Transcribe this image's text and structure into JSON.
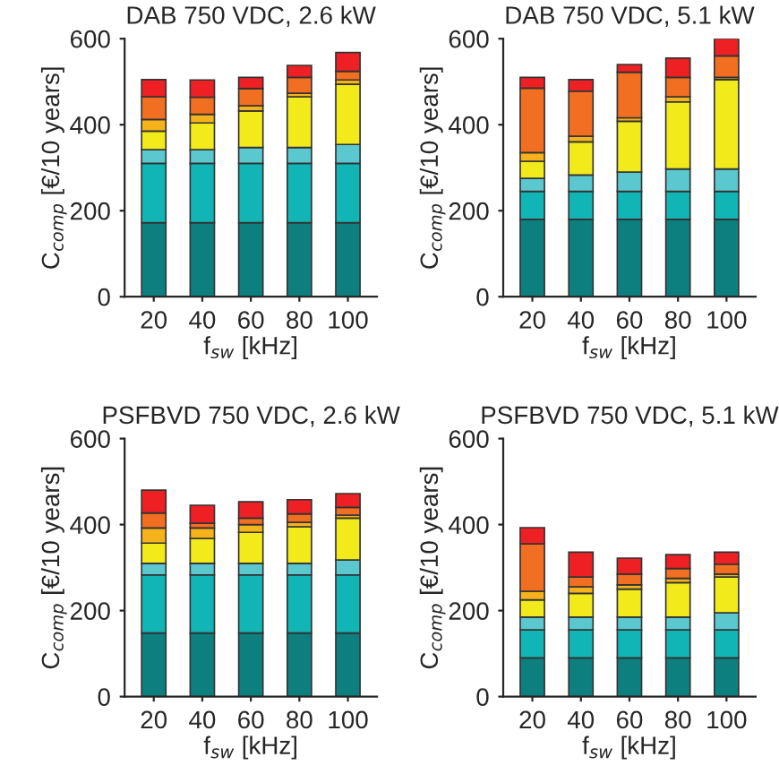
{
  "chart_data": [
    {
      "type": "bar",
      "stacked": true,
      "title": "DAB 750 VDC, 2.6 kW",
      "xlabel": "f$_{sw}$ [kHz]",
      "ylabel": "C$_{comp}$ [€/10 years]",
      "categories": [
        "20",
        "40",
        "60",
        "80",
        "100"
      ],
      "ylim": [
        0,
        600
      ],
      "yticks": [
        0,
        200,
        400,
        600
      ],
      "series": [
        {
          "color": "#0e7f7f",
          "values": [
            172,
            172,
            172,
            172,
            172
          ]
        },
        {
          "color": "#12b5b5",
          "values": [
            138,
            138,
            138,
            138,
            138
          ]
        },
        {
          "color": "#5bc8d0",
          "values": [
            32,
            32,
            37,
            37,
            44
          ]
        },
        {
          "color": "#f2ea1a",
          "values": [
            43,
            62,
            85,
            118,
            140
          ]
        },
        {
          "color": "#f5b21a",
          "values": [
            27,
            20,
            12,
            8,
            10
          ]
        },
        {
          "color": "#f26f21",
          "values": [
            53,
            40,
            40,
            37,
            20
          ]
        },
        {
          "color": "#ee2024",
          "values": [
            40,
            40,
            26,
            28,
            44
          ]
        }
      ]
    },
    {
      "type": "bar",
      "stacked": true,
      "title": "DAB 750 VDC, 5.1 kW",
      "xlabel": "f$_{sw}$ [kHz]",
      "ylabel": "C$_{comp}$ [€/10 years]",
      "categories": [
        "20",
        "40",
        "60",
        "80",
        "100"
      ],
      "ylim": [
        0,
        600
      ],
      "yticks": [
        0,
        200,
        400,
        600
      ],
      "series": [
        {
          "color": "#0e7f7f",
          "values": [
            180,
            180,
            180,
            180,
            180
          ]
        },
        {
          "color": "#12b5b5",
          "values": [
            65,
            65,
            65,
            65,
            65
          ]
        },
        {
          "color": "#5bc8d0",
          "values": [
            30,
            38,
            45,
            52,
            52
          ]
        },
        {
          "color": "#f2ea1a",
          "values": [
            40,
            77,
            118,
            156,
            208
          ]
        },
        {
          "color": "#f5b21a",
          "values": [
            20,
            13,
            8,
            12,
            5
          ]
        },
        {
          "color": "#f26f21",
          "values": [
            150,
            105,
            106,
            45,
            50
          ]
        },
        {
          "color": "#ee2024",
          "values": [
            25,
            27,
            18,
            45,
            40
          ]
        }
      ]
    },
    {
      "type": "bar",
      "stacked": true,
      "title": "PSFBVD 750 VDC, 2.6 kW",
      "xlabel": "f$_{sw}$ [kHz]",
      "ylabel": "C$_{comp}$ [€/10 years]",
      "categories": [
        "20",
        "40",
        "60",
        "80",
        "100"
      ],
      "ylim": [
        0,
        600
      ],
      "yticks": [
        0,
        200,
        400,
        600
      ],
      "series": [
        {
          "color": "#0e7f7f",
          "values": [
            148,
            148,
            148,
            148,
            148
          ]
        },
        {
          "color": "#12b5b5",
          "values": [
            135,
            135,
            135,
            135,
            135
          ]
        },
        {
          "color": "#5bc8d0",
          "values": [
            27,
            27,
            27,
            27,
            35
          ]
        },
        {
          "color": "#f2ea1a",
          "values": [
            47,
            58,
            72,
            85,
            97
          ]
        },
        {
          "color": "#f5b21a",
          "values": [
            35,
            24,
            18,
            10,
            7
          ]
        },
        {
          "color": "#f26f21",
          "values": [
            35,
            11,
            15,
            20,
            18
          ]
        },
        {
          "color": "#ee2024",
          "values": [
            53,
            42,
            38,
            33,
            32
          ]
        }
      ]
    },
    {
      "type": "bar",
      "stacked": true,
      "title": "PSFBVD 750 VDC, 5.1 kW",
      "xlabel": "f$_{sw}$ [kHz]",
      "ylabel": "C$_{comp}$ [€/10 years]",
      "categories": [
        "20",
        "40",
        "60",
        "80",
        "100"
      ],
      "ylim": [
        0,
        600
      ],
      "yticks": [
        0,
        200,
        400,
        600
      ],
      "series": [
        {
          "color": "#0e7f7f",
          "values": [
            90,
            90,
            90,
            90,
            90
          ]
        },
        {
          "color": "#12b5b5",
          "values": [
            65,
            65,
            65,
            65,
            65
          ]
        },
        {
          "color": "#5bc8d0",
          "values": [
            30,
            30,
            30,
            30,
            40
          ]
        },
        {
          "color": "#f2ea1a",
          "values": [
            40,
            55,
            65,
            80,
            83
          ]
        },
        {
          "color": "#f5b21a",
          "values": [
            20,
            15,
            10,
            10,
            7
          ]
        },
        {
          "color": "#f26f21",
          "values": [
            110,
            23,
            25,
            23,
            23
          ]
        },
        {
          "color": "#ee2024",
          "values": [
            38,
            58,
            37,
            32,
            28
          ]
        }
      ]
    }
  ]
}
